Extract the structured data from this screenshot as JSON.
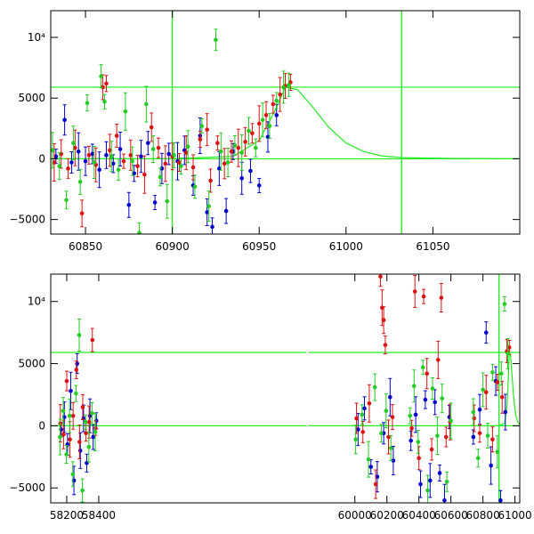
{
  "chart_data": [
    {
      "type": "scatter",
      "panel": "top",
      "xlim": [
        60830,
        61100
      ],
      "ylim": [
        -6200,
        12200
      ],
      "x_ticks": [
        60850,
        60900,
        60950,
        61000,
        61050
      ],
      "x_tick_labels": [
        "60850",
        "60900",
        "60950",
        "61000",
        "61050"
      ],
      "y_ticks": [
        -5000,
        0,
        5000,
        10000
      ],
      "y_tick_labels": [
        "−5000",
        "0",
        "5000",
        "10⁴"
      ],
      "hlines": [
        0,
        5900
      ],
      "vlines": [
        60900,
        61032
      ],
      "model_curve": [
        [
          60830,
          0
        ],
        [
          60900,
          0
        ],
        [
          60935,
          200
        ],
        [
          60950,
          1500
        ],
        [
          60960,
          4200
        ],
        [
          60965,
          5900
        ],
        [
          60972,
          5700
        ],
        [
          60980,
          4400
        ],
        [
          60990,
          2600
        ],
        [
          61000,
          1300
        ],
        [
          61010,
          600
        ],
        [
          61020,
          250
        ],
        [
          61032,
          100
        ],
        [
          61060,
          30
        ],
        [
          61100,
          10
        ]
      ],
      "series": [
        {
          "color": "#0000cc",
          "points": [
            [
              60833,
              200
            ],
            [
              60838,
              3200
            ],
            [
              60842,
              -300
            ],
            [
              60846,
              600
            ],
            [
              60850,
              -200
            ],
            [
              60854,
              400
            ],
            [
              60858,
              -900
            ],
            [
              60862,
              300
            ],
            [
              60866,
              -400
            ],
            [
              60870,
              800
            ],
            [
              60875,
              -3800
            ],
            [
              60878,
              -1200
            ],
            [
              60882,
              200
            ],
            [
              60886,
              1300
            ],
            [
              60890,
              -3600
            ],
            [
              60894,
              -800
            ],
            [
              60898,
              400
            ],
            [
              60903,
              -200
            ],
            [
              60907,
              700
            ],
            [
              60912,
              -2200
            ],
            [
              60916,
              1900
            ],
            [
              60920,
              -4400
            ],
            [
              60923,
              -5600
            ],
            [
              60927,
              -800
            ],
            [
              60931,
              -4300
            ],
            [
              60935,
              600
            ],
            [
              60940,
              -1600
            ],
            [
              60945,
              -1000
            ],
            [
              60950,
              -2200
            ],
            [
              60955,
              1800
            ],
            [
              60960,
              3600
            ]
          ]
        },
        {
          "color": "#dd1111",
          "points": [
            [
              60832,
              -300
            ],
            [
              60836,
              400
            ],
            [
              60840,
              -800
            ],
            [
              60844,
              900
            ],
            [
              60848,
              -4500
            ],
            [
              60852,
              300
            ],
            [
              60856,
              -500
            ],
            [
              60860,
              5900
            ],
            [
              60862,
              6200
            ],
            [
              60864,
              700
            ],
            [
              60868,
              1900
            ],
            [
              60872,
              -200
            ],
            [
              60876,
              300
            ],
            [
              60880,
              -600
            ],
            [
              60884,
              -1300
            ],
            [
              60888,
              2600
            ],
            [
              60892,
              900
            ],
            [
              60896,
              -400
            ],
            [
              60900,
              200
            ],
            [
              60904,
              -300
            ],
            [
              60908,
              500
            ],
            [
              60912,
              -700
            ],
            [
              60916,
              1600
            ],
            [
              60920,
              2400
            ],
            [
              60922,
              -1800
            ],
            [
              60926,
              1300
            ],
            [
              60930,
              -400
            ],
            [
              60934,
              600
            ],
            [
              60938,
              900
            ],
            [
              60942,
              1400
            ],
            [
              60946,
              2100
            ],
            [
              60950,
              2900
            ],
            [
              60954,
              3600
            ],
            [
              60958,
              4500
            ],
            [
              60962,
              5300
            ],
            [
              60965,
              6000
            ],
            [
              60968,
              6300
            ]
          ]
        },
        {
          "color": "#22cc22",
          "points": [
            [
              60831,
              700
            ],
            [
              60835,
              -600
            ],
            [
              60839,
              -3400
            ],
            [
              60843,
              1300
            ],
            [
              60847,
              -1900
            ],
            [
              60851,
              4600
            ],
            [
              60855,
              -300
            ],
            [
              60859,
              6800
            ],
            [
              60861,
              4700
            ],
            [
              60865,
              200
            ],
            [
              60869,
              -900
            ],
            [
              60873,
              3900
            ],
            [
              60877,
              -200
            ],
            [
              60881,
              -6100
            ],
            [
              60885,
              4500
            ],
            [
              60889,
              800
            ],
            [
              60893,
              -1500
            ],
            [
              60897,
              -3500
            ],
            [
              60901,
              300
            ],
            [
              60905,
              -600
            ],
            [
              60909,
              1000
            ],
            [
              60913,
              -2300
            ],
            [
              60917,
              2700
            ],
            [
              60921,
              -3900
            ],
            [
              60925,
              9800
            ],
            [
              60928,
              600
            ],
            [
              60932,
              -300
            ],
            [
              60936,
              1100
            ],
            [
              60940,
              500
            ],
            [
              60944,
              2300
            ],
            [
              60948,
              900
            ],
            [
              60952,
              3200
            ],
            [
              60956,
              2700
            ],
            [
              60960,
              4800
            ],
            [
              60964,
              5900
            ],
            [
              60967,
              6100
            ]
          ]
        }
      ]
    },
    {
      "type": "scatter",
      "panel": "bottom",
      "xlim": [
        58100,
        61030
      ],
      "ylim": [
        -6200,
        12200
      ],
      "x_ticks": [
        58200,
        58400,
        60000,
        60200,
        60400,
        60600,
        60800,
        61000
      ],
      "x_tick_labels": [
        "58200",
        "58400",
        "60000",
        "60200",
        "60400",
        "60600",
        "60800",
        "61000"
      ],
      "y_ticks": [
        -5000,
        0,
        5000,
        10000
      ],
      "y_tick_labels": [
        "−5000",
        "0",
        "5000",
        "10⁴"
      ],
      "hlines": [
        0,
        5900
      ],
      "vlines": [
        60900
      ],
      "axis_break": "between 58400 and 60000",
      "model_curve": [
        [
          60900,
          0
        ],
        [
          60935,
          200
        ],
        [
          60950,
          1500
        ],
        [
          60960,
          4200
        ],
        [
          60965,
          5900
        ],
        [
          60972,
          5700
        ],
        [
          60980,
          4400
        ],
        [
          60990,
          2600
        ],
        [
          61000,
          1300
        ],
        [
          61010,
          600
        ],
        [
          61020,
          250
        ],
        [
          61030,
          100
        ]
      ],
      "series": [
        {
          "color": "#0000cc",
          "points": [
            [
              58165,
              -300
            ],
            [
              58185,
              700
            ],
            [
              58205,
              -1500
            ],
            [
              58225,
              2800
            ],
            [
              58245,
              -4400
            ],
            [
              58265,
              5000
            ],
            [
              58285,
              -2000
            ],
            [
              58305,
              600
            ],
            [
              58325,
              -3000
            ],
            [
              58345,
              800
            ],
            [
              58365,
              -900
            ],
            [
              58385,
              400
            ],
            [
              60020,
              -300
            ],
            [
              60060,
              1400
            ],
            [
              60100,
              -3300
            ],
            [
              60140,
              -4100
            ],
            [
              60180,
              -600
            ],
            [
              60220,
              2300
            ],
            [
              60240,
              -2800
            ],
            [
              60350,
              -1200
            ],
            [
              60380,
              900
            ],
            [
              60410,
              -4700
            ],
            [
              60440,
              2100
            ],
            [
              60470,
              -4400
            ],
            [
              60500,
              1900
            ],
            [
              60530,
              -3800
            ],
            [
              60560,
              -6000
            ],
            [
              60590,
              700
            ],
            [
              60740,
              -900
            ],
            [
              60780,
              1300
            ],
            [
              60820,
              7500
            ],
            [
              60850,
              -3200
            ],
            [
              60880,
              3600
            ],
            [
              60910,
              -6000
            ],
            [
              60940,
              1100
            ]
          ]
        },
        {
          "color": "#dd1111",
          "points": [
            [
              58160,
              200
            ],
            [
              58180,
              -700
            ],
            [
              58200,
              3600
            ],
            [
              58220,
              -1100
            ],
            [
              58240,
              800
            ],
            [
              58260,
              4500
            ],
            [
              58280,
              -1300
            ],
            [
              58300,
              1500
            ],
            [
              58320,
              -600
            ],
            [
              58340,
              300
            ],
            [
              58360,
              6900
            ],
            [
              58380,
              -200
            ],
            [
              60010,
              600
            ],
            [
              60050,
              -500
            ],
            [
              60090,
              1800
            ],
            [
              60130,
              -4700
            ],
            [
              60160,
              12000
            ],
            [
              60170,
              9500
            ],
            [
              60180,
              8500
            ],
            [
              60190,
              6500
            ],
            [
              60210,
              -900
            ],
            [
              60235,
              700
            ],
            [
              60355,
              -200
            ],
            [
              60375,
              10800
            ],
            [
              60400,
              -2600
            ],
            [
              60430,
              10400
            ],
            [
              60450,
              4200
            ],
            [
              60480,
              -1900
            ],
            [
              60520,
              5300
            ],
            [
              60540,
              10300
            ],
            [
              60570,
              -900
            ],
            [
              60595,
              300
            ],
            [
              60745,
              600
            ],
            [
              60780,
              -600
            ],
            [
              60820,
              2700
            ],
            [
              60860,
              -1100
            ],
            [
              60890,
              3500
            ],
            [
              60920,
              2300
            ],
            [
              60950,
              6000
            ],
            [
              60965,
              6300
            ]
          ]
        },
        {
          "color": "#22cc22",
          "points": [
            [
              58158,
              -900
            ],
            [
              58178,
              1200
            ],
            [
              58198,
              -2300
            ],
            [
              58218,
              800
            ],
            [
              58238,
              -3900
            ],
            [
              58258,
              2600
            ],
            [
              58278,
              7300
            ],
            [
              58298,
              -5200
            ],
            [
              58318,
              300
            ],
            [
              58338,
              -1700
            ],
            [
              58358,
              1000
            ],
            [
              58378,
              -500
            ],
            [
              60005,
              -1100
            ],
            [
              60045,
              900
            ],
            [
              60085,
              -2700
            ],
            [
              60125,
              3100
            ],
            [
              60165,
              -600
            ],
            [
              60195,
              1200
            ],
            [
              60225,
              -1800
            ],
            [
              60345,
              800
            ],
            [
              60370,
              3200
            ],
            [
              60395,
              -1300
            ],
            [
              60425,
              4700
            ],
            [
              60455,
              -5200
            ],
            [
              60485,
              3000
            ],
            [
              60515,
              -800
            ],
            [
              60545,
              2200
            ],
            [
              60575,
              -4500
            ],
            [
              60600,
              400
            ],
            [
              60740,
              1100
            ],
            [
              60770,
              -2600
            ],
            [
              60800,
              2900
            ],
            [
              60830,
              -800
            ],
            [
              60860,
              4300
            ],
            [
              60890,
              -2100
            ],
            [
              60915,
              4200
            ],
            [
              60935,
              9800
            ],
            [
              60955,
              5800
            ]
          ]
        }
      ]
    }
  ]
}
